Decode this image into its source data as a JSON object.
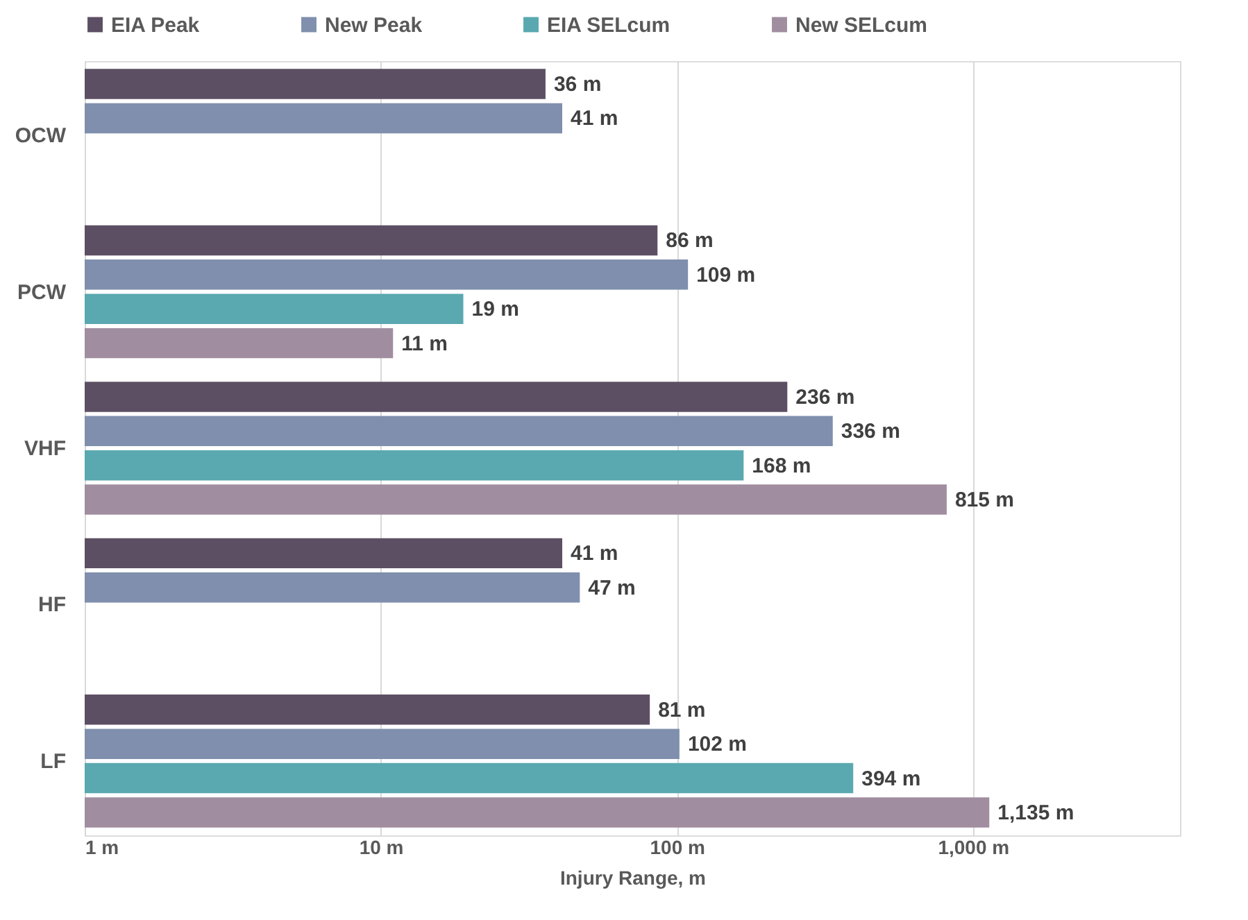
{
  "chart_data": {
    "type": "bar",
    "orientation": "horizontal",
    "xlabel": "Injury Range, m",
    "categories": [
      "OCW",
      "PCW",
      "VHF",
      "HF",
      "LF"
    ],
    "series": [
      {
        "name": "EIA Peak",
        "color": "#5d4f63",
        "values": [
          36,
          86,
          236,
          41,
          81
        ],
        "value_labels": [
          "36 m",
          "86 m",
          "236 m",
          "41 m",
          "81 m"
        ]
      },
      {
        "name": "New Peak",
        "color": "#7f8fad",
        "values": [
          41,
          109,
          336,
          47,
          102
        ],
        "value_labels": [
          "41 m",
          "109 m",
          "336 m",
          "47 m",
          "102 m"
        ]
      },
      {
        "name": "EIA SELcum",
        "color": "#5aa8b0",
        "values": [
          null,
          19,
          168,
          null,
          394
        ],
        "value_labels": [
          null,
          "19 m",
          "168 m",
          null,
          "394 m"
        ]
      },
      {
        "name": "New SELcum",
        "color": "#a08ea0",
        "values": [
          null,
          11,
          815,
          null,
          1135
        ],
        "value_labels": [
          null,
          "11 m",
          "815 m",
          null,
          "1,135 m"
        ]
      }
    ],
    "log": "x",
    "xlim": [
      1,
      5000
    ],
    "xticks": [
      {
        "value": 1,
        "label": "1 m"
      },
      {
        "value": 10,
        "label": "10 m"
      },
      {
        "value": 100,
        "label": "100 m"
      },
      {
        "value": 1000,
        "label": "1,000 m"
      }
    ],
    "grid": "x",
    "legend": "top"
  }
}
